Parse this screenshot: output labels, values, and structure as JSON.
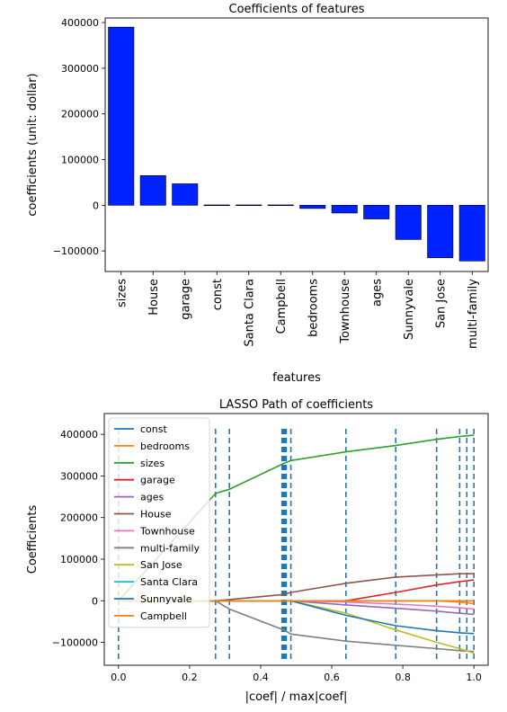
{
  "chart_data": [
    {
      "type": "bar",
      "title": "Coefficients of features",
      "xlabel": "features",
      "ylabel": "coefficients (unit: dollar)",
      "categories": [
        "sizes",
        "House",
        "garage",
        "const",
        "Santa Clara",
        "Campbell",
        "bedrooms",
        "Townhouse",
        "ages",
        "Sunnyvale",
        "San Jose",
        "multi-family"
      ],
      "values": [
        390000,
        65000,
        47000,
        0,
        0,
        0,
        -7000,
        -17000,
        -30000,
        -75000,
        -115000,
        -122000
      ],
      "ylim": [
        -145000,
        410000
      ],
      "yticks": [
        400000,
        300000,
        200000,
        100000,
        0,
        -100000
      ],
      "ytick_labels": [
        "400000",
        "300000",
        "200000",
        "100000",
        "0",
        "−100000"
      ],
      "bar_color": "#0022ff",
      "grid": false
    },
    {
      "type": "line",
      "title": "LASSO Path of coefficients",
      "xlabel": "|coef| / max|coef|",
      "ylabel": "Coefficients",
      "xlim": [
        -0.04,
        1.04
      ],
      "ylim": [
        -155000,
        450000
      ],
      "xticks": [
        0,
        0.2,
        0.4,
        0.6,
        0.8,
        1.0
      ],
      "xtick_labels": [
        "0.0",
        "0.2",
        "0.4",
        "0.6",
        "0.8",
        "1.0"
      ],
      "yticks": [
        400000,
        300000,
        200000,
        100000,
        0,
        -100000
      ],
      "ytick_labels": [
        "400000",
        "300000",
        "200000",
        "100000",
        "0",
        "−100000"
      ],
      "x": [
        0,
        0.273,
        0.312,
        0.465,
        0.485,
        0.64,
        0.78,
        0.895,
        0.96,
        1.0
      ],
      "vlines": [
        0,
        0.273,
        0.312,
        0.46,
        0.463,
        0.466,
        0.469,
        0.472,
        0.485,
        0.64,
        0.78,
        0.895,
        0.96,
        0.98,
        1.0
      ],
      "vline_color": "#1f77b4",
      "legend_position": "upper-left",
      "series": [
        {
          "name": "const",
          "color": "#1f77b4",
          "values": [
            0,
            0,
            0,
            0,
            0,
            0,
            0,
            0,
            0,
            0
          ]
        },
        {
          "name": "bedrooms",
          "color": "#ff7f0e",
          "values": [
            0,
            0,
            0,
            0,
            0,
            0,
            0,
            0,
            -3000,
            -7000
          ]
        },
        {
          "name": "sizes",
          "color": "#2ca02c",
          "values": [
            0,
            258000,
            268000,
            330000,
            337000,
            358000,
            373000,
            388000,
            395000,
            398000
          ]
        },
        {
          "name": "garage",
          "color": "#d62728",
          "values": [
            0,
            0,
            0,
            0,
            0,
            0,
            20000,
            38000,
            46000,
            50000
          ]
        },
        {
          "name": "ages",
          "color": "#9467bd",
          "values": [
            0,
            0,
            0,
            0,
            0,
            -10000,
            -18000,
            -25000,
            -30000,
            -33000
          ]
        },
        {
          "name": "House",
          "color": "#8c564b",
          "values": [
            0,
            0,
            3000,
            15000,
            20000,
            42000,
            57000,
            62000,
            65000,
            65000
          ]
        },
        {
          "name": "Townhouse",
          "color": "#e377c2",
          "values": [
            0,
            0,
            0,
            0,
            0,
            -3000,
            -8000,
            -13000,
            -17000,
            -20000
          ]
        },
        {
          "name": "multi-family",
          "color": "#7f7f7f",
          "values": [
            0,
            0,
            -20000,
            -70000,
            -80000,
            -97000,
            -107000,
            -115000,
            -120000,
            -122000
          ]
        },
        {
          "name": "San Jose",
          "color": "#bcbd22",
          "values": [
            0,
            0,
            0,
            0,
            0,
            -30000,
            -70000,
            -100000,
            -115000,
            -126000
          ]
        },
        {
          "name": "Santa Clara",
          "color": "#17becf",
          "values": [
            0,
            0,
            0,
            0,
            0,
            0,
            0,
            0,
            0,
            0
          ]
        },
        {
          "name": "Sunnyvale",
          "color": "#1f77b4",
          "values": [
            0,
            0,
            0,
            0,
            0,
            -35000,
            -60000,
            -72000,
            -77000,
            -79000
          ]
        },
        {
          "name": "Campbell",
          "color": "#ff7f0e",
          "values": [
            0,
            0,
            0,
            0,
            0,
            0,
            0,
            0,
            0,
            0
          ]
        }
      ]
    }
  ]
}
